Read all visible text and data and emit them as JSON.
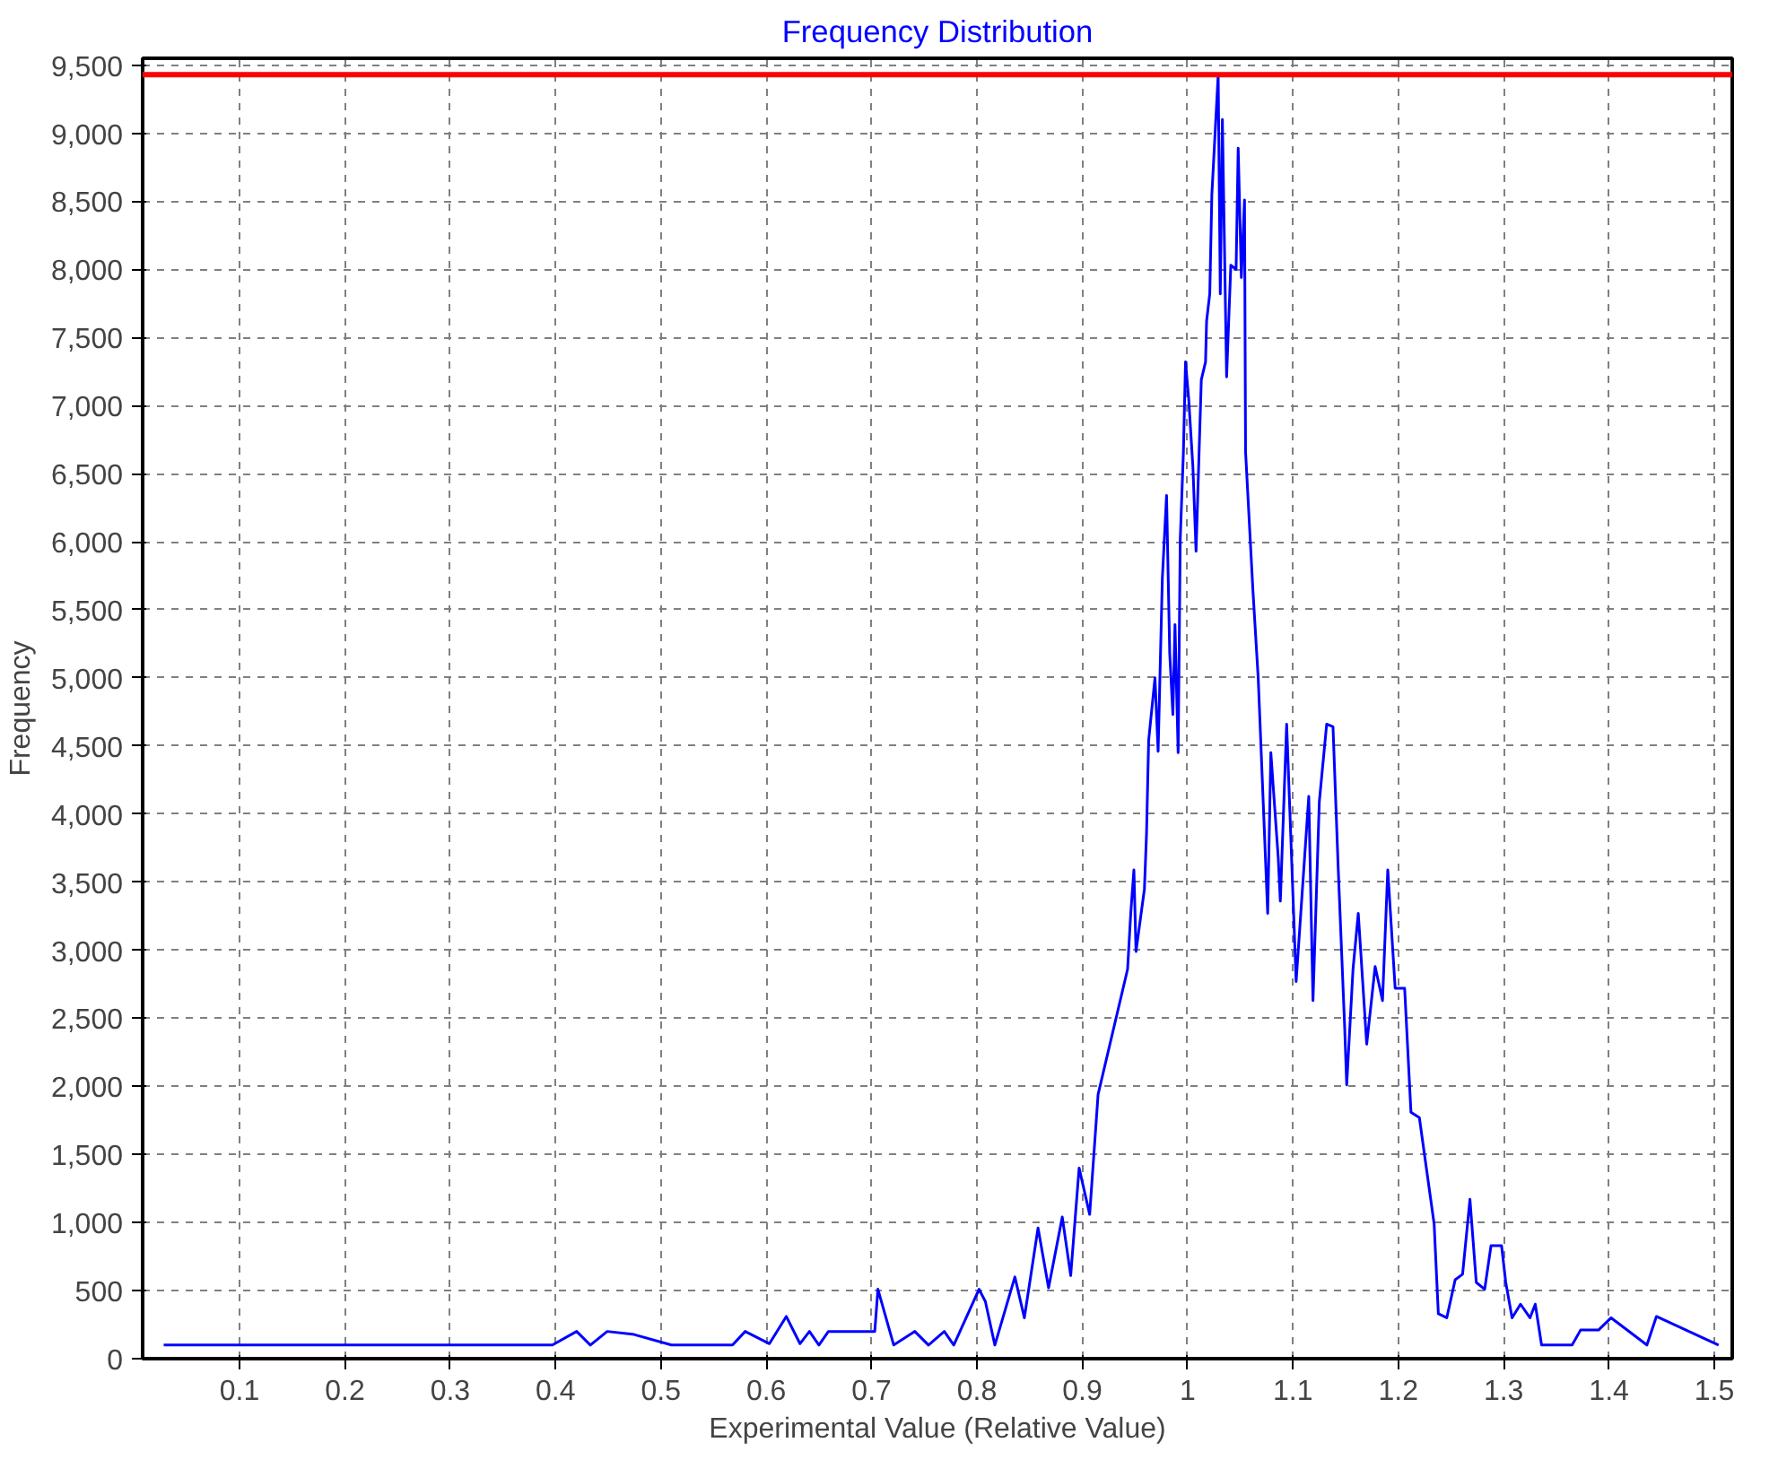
{
  "chart_data": {
    "type": "line",
    "title": "Frequency Distribution",
    "xlabel": "Experimental Value (Relative Value)",
    "ylabel": "Frequency",
    "xlim": [
      0.008,
      1.517
    ],
    "ylim": [
      0,
      9550
    ],
    "xticks": [
      0.1,
      0.2,
      0.3,
      0.4,
      0.5,
      0.6,
      0.7,
      0.8,
      0.9,
      {
        "value": 1,
        "label": "1"
      },
      1.1,
      1.2,
      1.3,
      1.4,
      1.5
    ],
    "yticks": [
      {
        "value": 0,
        "label": "0"
      },
      {
        "value": 500,
        "label": "500"
      },
      {
        "value": 1000,
        "label": "1,000"
      },
      {
        "value": 1500,
        "label": "1,500"
      },
      {
        "value": 2000,
        "label": "2,000"
      },
      {
        "value": 2500,
        "label": "2,500"
      },
      {
        "value": 3000,
        "label": "3,000"
      },
      {
        "value": 3500,
        "label": "3,500"
      },
      {
        "value": 4000,
        "label": "4,000"
      },
      {
        "value": 4500,
        "label": "4,500"
      },
      {
        "value": 5000,
        "label": "5,000"
      },
      {
        "value": 5500,
        "label": "5,500"
      },
      {
        "value": 6000,
        "label": "6,000"
      },
      {
        "value": 6500,
        "label": "6,500"
      },
      {
        "value": 7000,
        "label": "7,000"
      },
      {
        "value": 7500,
        "label": "7,500"
      },
      {
        "value": 8000,
        "label": "8,000"
      },
      {
        "value": 8500,
        "label": "8,500"
      },
      {
        "value": 9000,
        "label": "9,000"
      },
      {
        "value": 9500,
        "label": "9,500"
      }
    ],
    "grid": true,
    "line_style": "solid",
    "ref_lines": [
      {
        "axis": "y",
        "value": 9430,
        "color": "#ff0000"
      }
    ],
    "series": [
      {
        "color": "#0000ff",
        "x": [
          0.028,
          0.397,
          0.42,
          0.433,
          0.449,
          0.473,
          0.51,
          0.568,
          0.58,
          0.603,
          0.619,
          0.632,
          0.641,
          0.65,
          0.659,
          0.703,
          0.706,
          0.721,
          0.741,
          0.754,
          0.769,
          0.778,
          0.802,
          0.808,
          0.817,
          0.836,
          0.845,
          0.858,
          0.868,
          0.881,
          0.889,
          0.897,
          0.907,
          0.915,
          0.943,
          0.946,
          0.949,
          0.951,
          0.959,
          0.961,
          0.963,
          0.969,
          0.972,
          0.976,
          0.98,
          0.983,
          0.986,
          0.988,
          0.991,
          0.993,
          0.996,
          0.998,
          1.001,
          1.005,
          1.008,
          1.013,
          1.017,
          1.018,
          1.021,
          1.023,
          1.029,
          1.031,
          1.033,
          1.037,
          1.041,
          1.046,
          1.048,
          1.051,
          1.054,
          1.055,
          1.062,
          1.067,
          1.076,
          1.079,
          1.086,
          1.088,
          1.094,
          1.103,
          1.115,
          1.119,
          1.125,
          1.132,
          1.138,
          1.143,
          1.149,
          1.151,
          1.157,
          1.162,
          1.17,
          1.178,
          1.185,
          1.19,
          1.197,
          1.206,
          1.212,
          1.22,
          1.225,
          1.234,
          1.238,
          1.246,
          1.254,
          1.261,
          1.268,
          1.274,
          1.282,
          1.288,
          1.298,
          1.302,
          1.308,
          1.316,
          1.325,
          1.33,
          1.336,
          1.365,
          1.373,
          1.39,
          1.402,
          1.436,
          1.445,
          1.504
        ],
        "values": [
          100,
          100,
          200,
          100,
          200,
          180,
          100,
          100,
          200,
          110,
          310,
          110,
          200,
          100,
          200,
          200,
          510,
          100,
          200,
          100,
          200,
          100,
          510,
          420,
          100,
          600,
          300,
          960,
          520,
          1040,
          610,
          1400,
          1060,
          1940,
          2860,
          3270,
          3590,
          2990,
          3450,
          3860,
          4540,
          5000,
          4460,
          5730,
          6340,
          5180,
          4730,
          5390,
          4450,
          6020,
          6660,
          7320,
          7050,
          6550,
          5930,
          7190,
          7320,
          7620,
          7820,
          8550,
          9430,
          7820,
          9100,
          7210,
          8030,
          8000,
          8890,
          7940,
          8510,
          6660,
          5640,
          5000,
          3270,
          4450,
          3680,
          3360,
          4660,
          2770,
          4130,
          2630,
          4090,
          4660,
          4640,
          3590,
          2450,
          2010,
          2860,
          3270,
          2310,
          2880,
          2630,
          3590,
          2720,
          2720,
          1810,
          1770,
          1490,
          990,
          330,
          300,
          580,
          620,
          1170,
          560,
          510,
          830,
          830,
          560,
          300,
          400,
          300,
          400,
          100,
          100,
          210,
          210,
          300,
          100,
          310,
          100
        ]
      }
    ]
  }
}
